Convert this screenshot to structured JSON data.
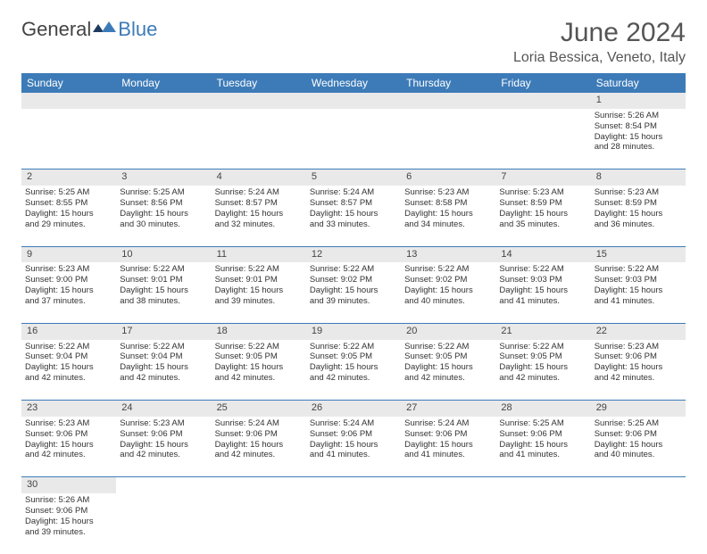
{
  "logo": {
    "textA": "General",
    "textB": "Blue"
  },
  "title": "June 2024",
  "location": "Loria Bessica, Veneto, Italy",
  "colors": {
    "header_bg": "#3d7bb8",
    "header_text": "#ffffff",
    "daynum_bg": "#e9e9e9",
    "border": "#3d7bb8",
    "page_bg": "#ffffff"
  },
  "dayHeaders": [
    "Sunday",
    "Monday",
    "Tuesday",
    "Wednesday",
    "Thursday",
    "Friday",
    "Saturday"
  ],
  "weeks": [
    [
      null,
      null,
      null,
      null,
      null,
      null,
      {
        "n": "1",
        "sr": "5:26 AM",
        "ss": "8:54 PM",
        "dl": "15 hours",
        "dm": "and 28 minutes."
      }
    ],
    [
      {
        "n": "2",
        "sr": "5:25 AM",
        "ss": "8:55 PM",
        "dl": "15 hours",
        "dm": "and 29 minutes."
      },
      {
        "n": "3",
        "sr": "5:25 AM",
        "ss": "8:56 PM",
        "dl": "15 hours",
        "dm": "and 30 minutes."
      },
      {
        "n": "4",
        "sr": "5:24 AM",
        "ss": "8:57 PM",
        "dl": "15 hours",
        "dm": "and 32 minutes."
      },
      {
        "n": "5",
        "sr": "5:24 AM",
        "ss": "8:57 PM",
        "dl": "15 hours",
        "dm": "and 33 minutes."
      },
      {
        "n": "6",
        "sr": "5:23 AM",
        "ss": "8:58 PM",
        "dl": "15 hours",
        "dm": "and 34 minutes."
      },
      {
        "n": "7",
        "sr": "5:23 AM",
        "ss": "8:59 PM",
        "dl": "15 hours",
        "dm": "and 35 minutes."
      },
      {
        "n": "8",
        "sr": "5:23 AM",
        "ss": "8:59 PM",
        "dl": "15 hours",
        "dm": "and 36 minutes."
      }
    ],
    [
      {
        "n": "9",
        "sr": "5:23 AM",
        "ss": "9:00 PM",
        "dl": "15 hours",
        "dm": "and 37 minutes."
      },
      {
        "n": "10",
        "sr": "5:22 AM",
        "ss": "9:01 PM",
        "dl": "15 hours",
        "dm": "and 38 minutes."
      },
      {
        "n": "11",
        "sr": "5:22 AM",
        "ss": "9:01 PM",
        "dl": "15 hours",
        "dm": "and 39 minutes."
      },
      {
        "n": "12",
        "sr": "5:22 AM",
        "ss": "9:02 PM",
        "dl": "15 hours",
        "dm": "and 39 minutes."
      },
      {
        "n": "13",
        "sr": "5:22 AM",
        "ss": "9:02 PM",
        "dl": "15 hours",
        "dm": "and 40 minutes."
      },
      {
        "n": "14",
        "sr": "5:22 AM",
        "ss": "9:03 PM",
        "dl": "15 hours",
        "dm": "and 41 minutes."
      },
      {
        "n": "15",
        "sr": "5:22 AM",
        "ss": "9:03 PM",
        "dl": "15 hours",
        "dm": "and 41 minutes."
      }
    ],
    [
      {
        "n": "16",
        "sr": "5:22 AM",
        "ss": "9:04 PM",
        "dl": "15 hours",
        "dm": "and 42 minutes."
      },
      {
        "n": "17",
        "sr": "5:22 AM",
        "ss": "9:04 PM",
        "dl": "15 hours",
        "dm": "and 42 minutes."
      },
      {
        "n": "18",
        "sr": "5:22 AM",
        "ss": "9:05 PM",
        "dl": "15 hours",
        "dm": "and 42 minutes."
      },
      {
        "n": "19",
        "sr": "5:22 AM",
        "ss": "9:05 PM",
        "dl": "15 hours",
        "dm": "and 42 minutes."
      },
      {
        "n": "20",
        "sr": "5:22 AM",
        "ss": "9:05 PM",
        "dl": "15 hours",
        "dm": "and 42 minutes."
      },
      {
        "n": "21",
        "sr": "5:22 AM",
        "ss": "9:05 PM",
        "dl": "15 hours",
        "dm": "and 42 minutes."
      },
      {
        "n": "22",
        "sr": "5:23 AM",
        "ss": "9:06 PM",
        "dl": "15 hours",
        "dm": "and 42 minutes."
      }
    ],
    [
      {
        "n": "23",
        "sr": "5:23 AM",
        "ss": "9:06 PM",
        "dl": "15 hours",
        "dm": "and 42 minutes."
      },
      {
        "n": "24",
        "sr": "5:23 AM",
        "ss": "9:06 PM",
        "dl": "15 hours",
        "dm": "and 42 minutes."
      },
      {
        "n": "25",
        "sr": "5:24 AM",
        "ss": "9:06 PM",
        "dl": "15 hours",
        "dm": "and 42 minutes."
      },
      {
        "n": "26",
        "sr": "5:24 AM",
        "ss": "9:06 PM",
        "dl": "15 hours",
        "dm": "and 41 minutes."
      },
      {
        "n": "27",
        "sr": "5:24 AM",
        "ss": "9:06 PM",
        "dl": "15 hours",
        "dm": "and 41 minutes."
      },
      {
        "n": "28",
        "sr": "5:25 AM",
        "ss": "9:06 PM",
        "dl": "15 hours",
        "dm": "and 41 minutes."
      },
      {
        "n": "29",
        "sr": "5:25 AM",
        "ss": "9:06 PM",
        "dl": "15 hours",
        "dm": "and 40 minutes."
      }
    ],
    [
      {
        "n": "30",
        "sr": "5:26 AM",
        "ss": "9:06 PM",
        "dl": "15 hours",
        "dm": "and 39 minutes."
      },
      null,
      null,
      null,
      null,
      null,
      null
    ]
  ],
  "labels": {
    "sunrise": "Sunrise:",
    "sunset": "Sunset:",
    "daylight": "Daylight:"
  }
}
